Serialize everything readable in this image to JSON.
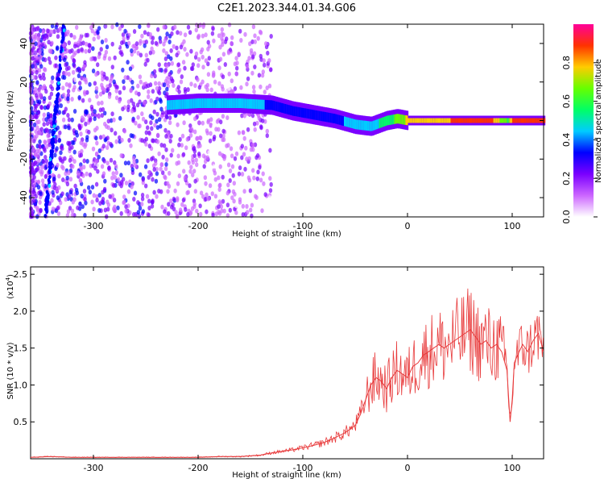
{
  "title": "C2E1.2023.344.01.34.G06",
  "chart_data": [
    {
      "type": "heatmap",
      "xlabel": "Height of straight line (km)",
      "ylabel": "Frequency (Hz)",
      "xlim": [
        -360,
        130
      ],
      "ylim": [
        -50,
        50
      ],
      "xticks": [
        -300,
        -200,
        -100,
        0,
        100
      ],
      "xtick_labels": [
        "-300",
        "-200",
        "-100",
        "0",
        "100"
      ],
      "yticks": [
        -40,
        -20,
        0,
        20,
        40
      ],
      "ytick_labels": [
        "-40",
        "-20",
        "0",
        "20",
        "40"
      ],
      "colorbar": {
        "label": "Normalized spectral amplitude",
        "range": [
          0,
          1
        ],
        "ticks": [
          0.0,
          0.2,
          0.4,
          0.6,
          0.8
        ],
        "tick_labels": [
          "0.0",
          "0.2",
          "0.4",
          "0.6",
          "0.8"
        ],
        "colormap": [
          "#ffffff",
          "#cc66ff",
          "#7a00ff",
          "#0000ff",
          "#00ccff",
          "#00ff66",
          "#66ff00",
          "#ffcc00",
          "#ff3300",
          "#ff0099"
        ]
      },
      "ridge": {
        "x": [
          -230,
          -200,
          -160,
          -130,
          -110,
          -90,
          -70,
          -50,
          -35,
          -20,
          -10,
          0,
          20,
          50,
          80,
          95,
          100,
          130
        ],
        "y": [
          8,
          9,
          9,
          8,
          5,
          3,
          1,
          -2,
          -3,
          0,
          1,
          0,
          0,
          0,
          0,
          0,
          0,
          0
        ],
        "amplitude": [
          0.45,
          0.45,
          0.42,
          0.38,
          0.35,
          0.36,
          0.38,
          0.4,
          0.45,
          0.55,
          0.65,
          0.75,
          0.8,
          0.85,
          0.85,
          0.6,
          0.85,
          0.85
        ]
      }
    },
    {
      "type": "line",
      "xlabel": "Height of straight line (km)",
      "ylabel": "SNR (10 * v/v)",
      "y_multiplier": "(x10",
      "y_multiplier_exp": "4",
      "y_multiplier_close": ")",
      "xlim": [
        -360,
        130
      ],
      "ylim": [
        0,
        2.6
      ],
      "xticks": [
        -300,
        -200,
        -100,
        0,
        100
      ],
      "xtick_labels": [
        "-300",
        "-200",
        "-100",
        "0",
        "100"
      ],
      "yticks": [
        0.5,
        1.0,
        1.5,
        2.0,
        2.5
      ],
      "ytick_labels": [
        "0.5",
        "1.0",
        "1.5",
        "2.0",
        "2.5"
      ],
      "color": "#e8393a",
      "series": [
        {
          "x": [
            -360,
            -340,
            -320,
            -300,
            -280,
            -260,
            -240,
            -220,
            -200,
            -180,
            -160,
            -140,
            -130,
            -120,
            -110,
            -100,
            -90,
            -80,
            -70,
            -60,
            -50,
            -45,
            -40,
            -35,
            -30,
            -25,
            -20,
            -15,
            -10,
            -5,
            0,
            5,
            10,
            15,
            20,
            25,
            30,
            35,
            40,
            45,
            50,
            55,
            60,
            65,
            70,
            75,
            80,
            85,
            90,
            95,
            98,
            100,
            102,
            105,
            110,
            115,
            120,
            125,
            130
          ],
          "y": [
            0.02,
            0.03,
            0.02,
            0.02,
            0.02,
            0.02,
            0.02,
            0.02,
            0.02,
            0.03,
            0.03,
            0.05,
            0.08,
            0.1,
            0.12,
            0.15,
            0.18,
            0.22,
            0.28,
            0.35,
            0.45,
            0.6,
            0.8,
            1.0,
            1.1,
            1.05,
            0.95,
            1.1,
            1.2,
            1.15,
            1.1,
            1.25,
            1.3,
            1.4,
            1.45,
            1.5,
            1.55,
            1.5,
            1.55,
            1.6,
            1.65,
            1.7,
            1.75,
            1.65,
            1.55,
            1.6,
            1.5,
            1.55,
            1.45,
            1.2,
            0.5,
            0.8,
            1.3,
            1.4,
            1.55,
            1.45,
            1.6,
            1.7,
            1.45
          ]
        }
      ]
    }
  ]
}
